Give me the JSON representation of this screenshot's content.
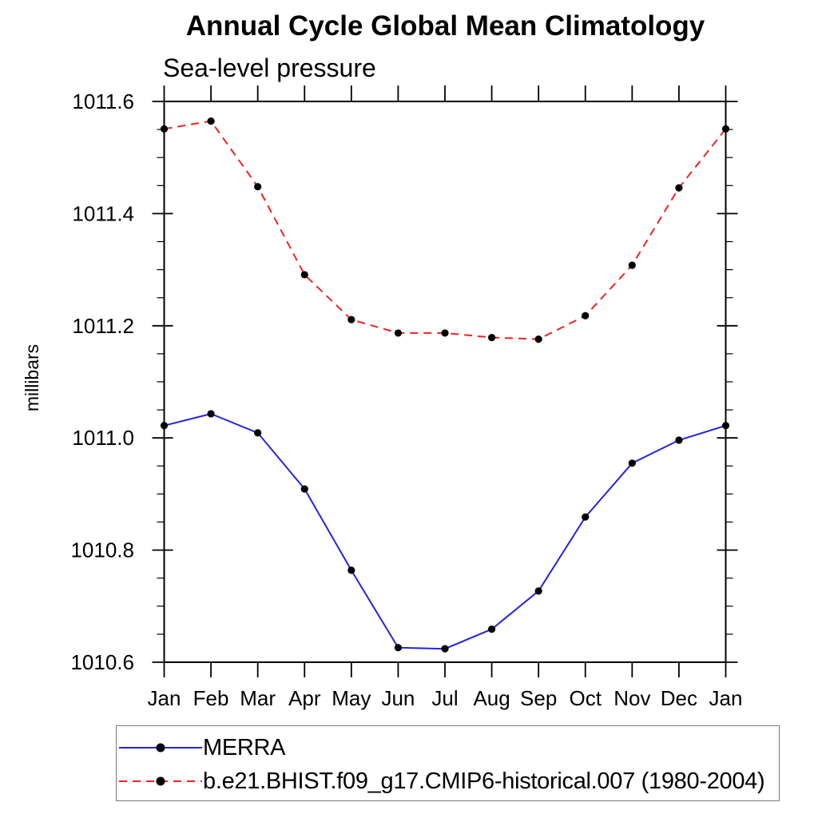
{
  "page": {
    "background": "#ffffff",
    "text_color": "#000000",
    "axis_color": "#000000"
  },
  "chart_data": {
    "type": "line",
    "title": "Annual Cycle Global Mean Climatology",
    "subtitle": "Sea-level pressure",
    "xlabel": "",
    "ylabel": "millibars",
    "categories": [
      "Jan",
      "Feb",
      "Mar",
      "Apr",
      "May",
      "Jun",
      "Jul",
      "Aug",
      "Sep",
      "Oct",
      "Nov",
      "Dec",
      "Jan"
    ],
    "ylim": [
      1010.6,
      1011.6
    ],
    "y_major_tick_step": 0.2,
    "y_minor_tick_step": 0.05,
    "y_tick_labels": [
      "1010.6",
      "1010.8",
      "1011.0",
      "1011.2",
      "1011.4",
      "1011.6"
    ],
    "grid": false,
    "frame": true,
    "legend_position": "bottom-left-box",
    "marker_color": "#000000",
    "series": [
      {
        "name": "MERRA",
        "color": "#2424dd",
        "line_style": "solid",
        "marker": "filled-circle",
        "values": [
          1011.022,
          1011.043,
          1011.009,
          1010.909,
          1010.764,
          1010.626,
          1010.624,
          1010.659,
          1010.727,
          1010.859,
          1010.955,
          1010.996,
          1011.022
        ]
      },
      {
        "name": "b.e21.BHIST.f09_g17.CMIP6-historical.007 (1980-2004)",
        "color": "#ee2222",
        "line_style": "dashed",
        "marker": "filled-circle",
        "values": [
          1011.551,
          1011.565,
          1011.448,
          1011.291,
          1011.211,
          1011.187,
          1011.187,
          1011.179,
          1011.176,
          1011.218,
          1011.308,
          1011.446,
          1011.551
        ]
      }
    ]
  }
}
